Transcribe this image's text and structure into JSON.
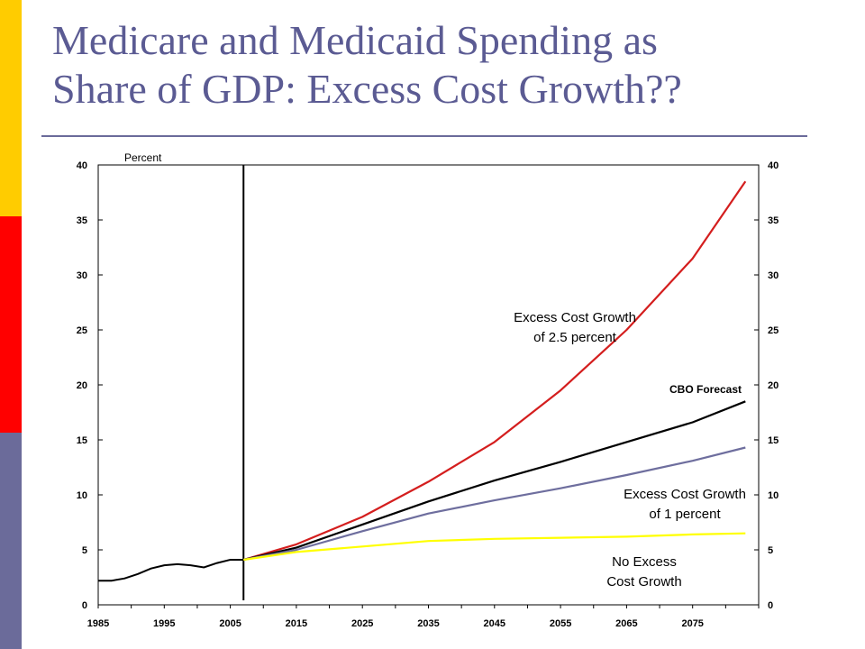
{
  "slide": {
    "title_line1": "Medicare and Medicaid Spending as",
    "title_line2": "Share of GDP: Excess Cost Growth??",
    "accent_colors": [
      "#ffcc00",
      "#ff0000",
      "#6b6b9a"
    ]
  },
  "chart_data": {
    "type": "line",
    "y_unit_label": "Percent",
    "xlim": [
      1985,
      2085
    ],
    "ylim": [
      0,
      40
    ],
    "x_ticks": [
      1985,
      1995,
      2005,
      2015,
      2025,
      2035,
      2045,
      2055,
      2065,
      2075
    ],
    "y_ticks": [
      0,
      5,
      10,
      15,
      20,
      25,
      30,
      35,
      40
    ],
    "secondary_y_axis": true,
    "grid": false,
    "vertical_marker_year": 2007,
    "historical": {
      "color": "#000000",
      "points": [
        [
          1985,
          2.2
        ],
        [
          1987,
          2.2
        ],
        [
          1989,
          2.4
        ],
        [
          1991,
          2.8
        ],
        [
          1993,
          3.3
        ],
        [
          1995,
          3.6
        ],
        [
          1997,
          3.7
        ],
        [
          1999,
          3.6
        ],
        [
          2001,
          3.4
        ],
        [
          2003,
          3.8
        ],
        [
          2005,
          4.1
        ],
        [
          2007,
          4.1
        ]
      ]
    },
    "series": [
      {
        "key": "excess_2_5",
        "label_line1": "Excess Cost Growth",
        "label_line2": "of 2.5 percent",
        "color": "#d41e1e",
        "points": [
          [
            2007,
            4.1
          ],
          [
            2015,
            5.5
          ],
          [
            2025,
            8.0
          ],
          [
            2035,
            11.2
          ],
          [
            2045,
            14.8
          ],
          [
            2055,
            19.5
          ],
          [
            2065,
            25.0
          ],
          [
            2075,
            31.5
          ],
          [
            2083,
            38.5
          ]
        ]
      },
      {
        "key": "cbo",
        "label_line1": "CBO Forecast",
        "label_line2": "",
        "color": "#000000",
        "points": [
          [
            2007,
            4.1
          ],
          [
            2015,
            5.2
          ],
          [
            2025,
            7.3
          ],
          [
            2035,
            9.4
          ],
          [
            2045,
            11.3
          ],
          [
            2055,
            13.0
          ],
          [
            2065,
            14.8
          ],
          [
            2075,
            16.6
          ],
          [
            2083,
            18.5
          ]
        ]
      },
      {
        "key": "excess_1",
        "label_line1": "Excess Cost Growth",
        "label_line2": "of 1 percent",
        "color": "#6e6e9e",
        "points": [
          [
            2007,
            4.1
          ],
          [
            2015,
            5.0
          ],
          [
            2025,
            6.7
          ],
          [
            2035,
            8.3
          ],
          [
            2045,
            9.5
          ],
          [
            2055,
            10.6
          ],
          [
            2065,
            11.8
          ],
          [
            2075,
            13.1
          ],
          [
            2083,
            14.3
          ]
        ]
      },
      {
        "key": "no_excess",
        "label_line1": "No Excess",
        "label_line2": "Cost Growth",
        "color": "#ffff00",
        "points": [
          [
            2007,
            4.1
          ],
          [
            2015,
            4.8
          ],
          [
            2025,
            5.3
          ],
          [
            2035,
            5.8
          ],
          [
            2045,
            6.0
          ],
          [
            2055,
            6.1
          ],
          [
            2065,
            6.2
          ],
          [
            2075,
            6.4
          ],
          [
            2083,
            6.5
          ]
        ]
      }
    ]
  }
}
